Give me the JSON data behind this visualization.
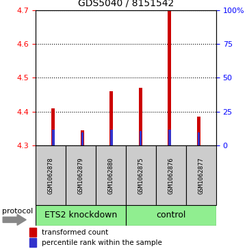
{
  "title": "GDS5040 / 8151542",
  "samples": [
    "GSM1062878",
    "GSM1062879",
    "GSM1062880",
    "GSM1062875",
    "GSM1062876",
    "GSM1062877"
  ],
  "red_values": [
    4.41,
    4.345,
    4.46,
    4.47,
    4.7,
    4.385
  ],
  "blue_values_pct": [
    12,
    10,
    12,
    11,
    12,
    10
  ],
  "ylim_left": [
    4.3,
    4.7
  ],
  "ylim_right": [
    0,
    100
  ],
  "yticks_left": [
    4.3,
    4.4,
    4.5,
    4.6,
    4.7
  ],
  "yticks_right": [
    0,
    25,
    50,
    75,
    100
  ],
  "ytick_labels_right": [
    "0",
    "25",
    "50",
    "75",
    "100%"
  ],
  "red_bar_width": 0.12,
  "blue_bar_width": 0.08,
  "red_color": "#cc0000",
  "blue_color": "#3333cc",
  "group_names": [
    "ETS2 knockdown",
    "control"
  ],
  "legend_red": "transformed count",
  "legend_blue": "percentile rank within the sample",
  "protocol_label": "protocol",
  "label_area_color": "#cccccc",
  "group_area_color": "#90ee90",
  "title_fontsize": 10,
  "tick_fontsize": 8,
  "sample_fontsize": 6.5,
  "group_fontsize": 9,
  "legend_fontsize": 7.5
}
